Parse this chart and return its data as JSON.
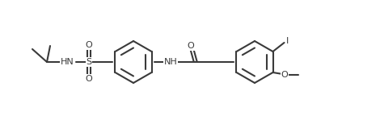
{
  "bg": "#ffffff",
  "lc": "#3a3a3a",
  "lw": 1.5,
  "fs": 8.0,
  "figsize": [
    4.7,
    1.59
  ],
  "dpi": 100,
  "xlim": [
    0,
    47
  ],
  "ylim": [
    0,
    15.9
  ]
}
